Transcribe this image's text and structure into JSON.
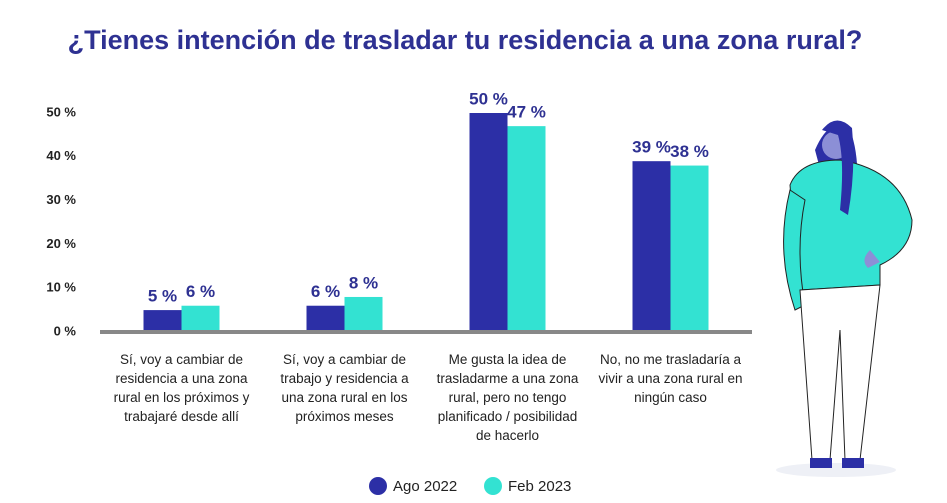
{
  "chart_data": {
    "type": "bar",
    "title": "¿Tienes intención de trasladar tu residencia a una zona rural?",
    "categories": [
      "Sí, voy a cambiar de residencia a una zona rural en los próximos y trabajaré desde allí",
      "Sí, voy a cambiar de trabajo y residencia a una zona rural en los próximos meses",
      "Me gusta la idea de trasladarme a una zona rural, pero no tengo planificado / posibilidad de hacerlo",
      "No, no me trasladaría a vivir a una zona rural en ningún caso"
    ],
    "series": [
      {
        "name": "Ago 2022",
        "color": "#2c2fa6",
        "values": [
          5,
          6,
          50,
          39
        ],
        "value_labels": [
          "5 %",
          "6 %",
          "50 %",
          "39 %"
        ]
      },
      {
        "name": "Feb 2023",
        "color": "#33e2d2",
        "values": [
          6,
          8,
          47,
          38
        ],
        "value_labels": [
          "6 %",
          "8 %",
          "47 %",
          "38 %"
        ]
      }
    ],
    "ylim": [
      0,
      50
    ],
    "yticks": [
      {
        "value": 0,
        "label": "0 %"
      },
      {
        "value": 10,
        "label": "10 %"
      },
      {
        "value": 20,
        "label": "20 %"
      },
      {
        "value": 30,
        "label": "30 %"
      },
      {
        "value": 40,
        "label": "40 %"
      },
      {
        "value": 50,
        "label": "50 %"
      }
    ],
    "grid": false,
    "legend": "bottom"
  }
}
